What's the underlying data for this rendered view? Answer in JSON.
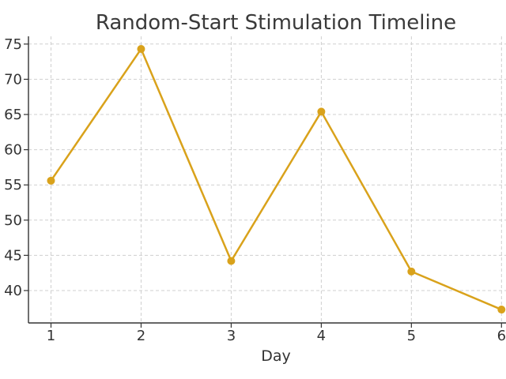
{
  "chart_data": {
    "type": "line",
    "title": "Random-Start Stimulation Timeline",
    "xlabel": "Day",
    "ylabel": "",
    "x": [
      1,
      2,
      3,
      4,
      5,
      6
    ],
    "series": [
      {
        "values": [
          55.6,
          74.3,
          44.2,
          65.4,
          42.7,
          37.3
        ],
        "color": "#d9a21b"
      }
    ],
    "xlim": [
      0.75,
      6.05
    ],
    "ylim": [
      35.4,
      76.1
    ],
    "xticks": [
      1,
      2,
      3,
      4,
      5,
      6
    ],
    "xtick_labels": [
      "1",
      "2",
      "3",
      "4",
      "5",
      "6"
    ],
    "yticks": [
      40,
      45,
      50,
      55,
      60,
      65,
      70,
      75
    ],
    "ytick_labels": [
      "40",
      "45",
      "50",
      "55",
      "60",
      "65",
      "70",
      "75"
    ],
    "grid": true,
    "legend": "none",
    "marker": "circle"
  }
}
